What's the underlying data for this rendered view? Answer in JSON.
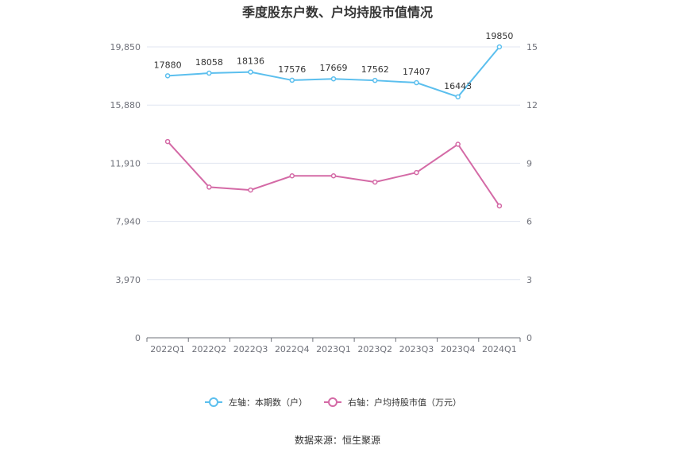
{
  "chart_data": {
    "type": "line",
    "title": "季度股东户数、户均持股市值情况",
    "categories": [
      "2022Q1",
      "2022Q2",
      "2022Q3",
      "2022Q4",
      "2023Q1",
      "2023Q2",
      "2023Q3",
      "2023Q4",
      "2024Q1"
    ],
    "y_left": {
      "ticks": [
        "0",
        "3,970",
        "7,940",
        "11,910",
        "15,880",
        "19,850"
      ],
      "range": [
        0,
        19850
      ]
    },
    "y_right": {
      "ticks": [
        "0",
        "3",
        "6",
        "9",
        "12",
        "15"
      ],
      "range": [
        0,
        15
      ]
    },
    "grid": true,
    "legend_position": "bottom",
    "series": [
      {
        "name": "左轴：本期数（户）",
        "axis": "left",
        "color": "#5bbfee",
        "values": [
          17880,
          18058,
          18136,
          17576,
          17669,
          17562,
          17407,
          16443,
          19850
        ],
        "labels": [
          "17880",
          "18058",
          "18136",
          "17576",
          "17669",
          "17562",
          "17407",
          "16443",
          "19850"
        ]
      },
      {
        "name": "右轴：户均持股市值（万元）",
        "axis": "right",
        "color": "#d46aa6",
        "values": [
          10.12,
          7.77,
          7.62,
          8.35,
          8.35,
          8.03,
          8.52,
          9.98,
          6.8
        ]
      }
    ],
    "source": "数据来源：恒生聚源"
  }
}
